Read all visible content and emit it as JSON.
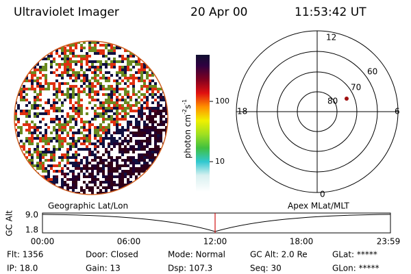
{
  "header": {
    "instrument": "Ultraviolet Imager",
    "date": "20 Apr 00",
    "time": "11:53:42 UT"
  },
  "colorbar": {
    "label": {
      "base": "photon cm",
      "exp1": "-2",
      "mid": "s",
      "exp2": "-1"
    },
    "ticks": [
      "100",
      "10"
    ]
  },
  "polar": {
    "mlt_labels": [
      "12",
      "18",
      "6",
      "0"
    ],
    "lat_labels": [
      "60",
      "70",
      "80"
    ]
  },
  "timeline": {
    "left_label": "Geographic Lat/Lon",
    "right_label": "Apex MLat/MLT",
    "axis_label": "GC Alt",
    "y_labels": [
      "9.0",
      "1.8"
    ],
    "time_labels": [
      "00:00",
      "06:00",
      "12:00",
      "18:00",
      "23:59"
    ]
  },
  "info": {
    "rows": [
      [
        "Flt: 1356",
        "Door: Closed",
        "Mode: Normal",
        "GC Alt: 2.0 Re",
        "GLat: *****"
      ],
      [
        "IP: 18.0",
        "Gain: 13",
        "Dsp: 107.3",
        "Seq: 30",
        "GLon: *****"
      ]
    ]
  }
}
